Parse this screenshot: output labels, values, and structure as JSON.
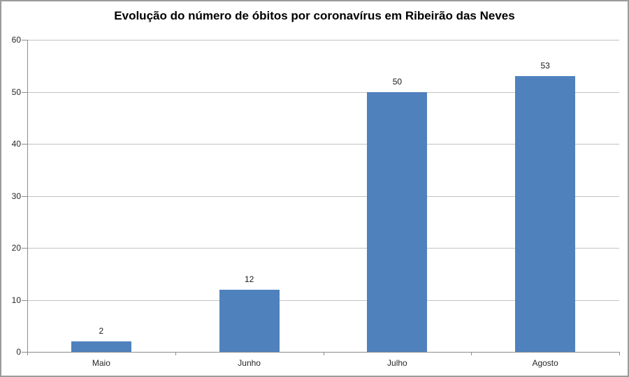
{
  "chart_data": {
    "type": "bar",
    "title": "Evolução do número de óbitos por coronavírus em Ribeirão das Neves",
    "categories": [
      "Maio",
      "Junho",
      "Julho",
      "Agosto"
    ],
    "values": [
      2,
      12,
      50,
      53
    ],
    "data_labels": [
      "2",
      "12",
      "50",
      "53"
    ],
    "xlabel": "",
    "ylabel": "",
    "ylim": [
      0,
      60
    ],
    "y_ticks": [
      0,
      10,
      20,
      30,
      40,
      50,
      60
    ],
    "grid": true,
    "legend": false,
    "colors": {
      "bar_fill": "#4f81bd",
      "gridline": "#c3c3c3",
      "axis_line": "#8c8c8c",
      "tick_label": "#262626",
      "title": "#000000",
      "frame_border": "#9b9b9b",
      "background": "#ffffff"
    }
  }
}
